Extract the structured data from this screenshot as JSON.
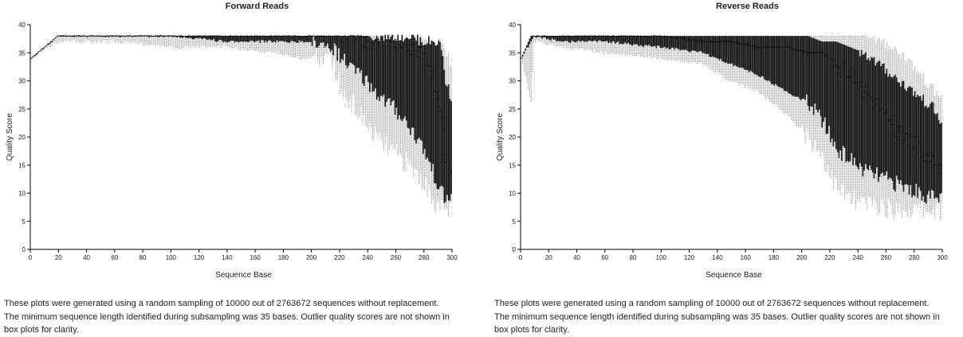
{
  "chart_data": [
    {
      "type": "box",
      "title": "Forward Reads",
      "xlabel": "Sequence Base",
      "ylabel": "Quality Score",
      "xlim": [
        0,
        300
      ],
      "ylim": [
        0,
        40
      ],
      "xticks": [
        0,
        20,
        40,
        60,
        80,
        100,
        120,
        140,
        160,
        180,
        200,
        220,
        240,
        260,
        280,
        300
      ],
      "yticks": [
        0,
        5,
        10,
        15,
        20,
        25,
        30,
        35,
        40
      ],
      "profile": {
        "base": [
          1,
          20,
          60,
          100,
          140,
          170,
          195,
          215,
          222,
          230,
          240,
          250,
          260,
          270,
          280,
          285,
          290,
          293,
          296,
          300
        ],
        "whisker_low": [
          34,
          37,
          37,
          36,
          36,
          35,
          34,
          34,
          28,
          26,
          22,
          19,
          17,
          15,
          12,
          10,
          8,
          7,
          7,
          7
        ],
        "q1": [
          34,
          38,
          38,
          38,
          37,
          37,
          37,
          36,
          34,
          32,
          30,
          27,
          25,
          22,
          18,
          15,
          12,
          10,
          9,
          9
        ],
        "median": [
          34,
          38,
          38,
          38,
          38,
          38,
          38,
          38,
          38,
          38,
          37,
          37,
          37,
          36,
          35,
          32,
          28,
          22,
          16,
          13
        ],
        "q3": [
          34,
          38,
          38,
          38,
          38,
          38,
          38,
          38,
          38,
          38,
          38,
          38,
          38,
          38,
          37,
          37,
          37,
          36,
          30,
          27
        ],
        "whisker_high": [
          34,
          38,
          38,
          38,
          38,
          38,
          38,
          38,
          38,
          38,
          38,
          38,
          38,
          38,
          38,
          37,
          37,
          37,
          35,
          33
        ]
      }
    },
    {
      "type": "box",
      "title": "Reverse Reads",
      "xlabel": "Sequence Base",
      "ylabel": "Quality Score",
      "xlim": [
        0,
        300
      ],
      "ylim": [
        0,
        40
      ],
      "xticks": [
        0,
        20,
        40,
        60,
        80,
        100,
        120,
        140,
        160,
        180,
        200,
        220,
        240,
        260,
        280,
        300
      ],
      "yticks": [
        0,
        5,
        10,
        15,
        20,
        25,
        30,
        35,
        40
      ],
      "profile": {
        "base": [
          1,
          8,
          10,
          30,
          60,
          100,
          130,
          150,
          170,
          190,
          205,
          215,
          225,
          235,
          245,
          255,
          265,
          275,
          285,
          295,
          300
        ],
        "whisker_low": [
          34,
          26,
          37,
          36,
          35,
          34,
          33,
          30,
          28,
          24,
          20,
          17,
          11,
          9,
          8,
          8,
          7,
          7,
          7,
          7,
          7
        ],
        "q1": [
          34,
          37,
          38,
          37,
          37,
          36,
          35,
          33,
          31,
          28,
          26,
          23,
          18,
          16,
          14,
          13,
          12,
          11,
          10,
          9,
          9
        ],
        "median": [
          34,
          38,
          38,
          38,
          38,
          38,
          37,
          37,
          36,
          36,
          35,
          35,
          33,
          31,
          28,
          25,
          22,
          20,
          18,
          15,
          14
        ],
        "q3": [
          34,
          38,
          38,
          38,
          38,
          38,
          38,
          38,
          38,
          38,
          38,
          37,
          37,
          36,
          35,
          33,
          31,
          29,
          27,
          25,
          22
        ],
        "whisker_high": [
          34,
          38,
          38,
          38,
          38,
          38,
          38,
          38,
          38,
          38,
          38,
          38,
          38,
          38,
          38,
          37,
          36,
          34,
          31,
          28,
          27
        ]
      }
    }
  ],
  "captions": [
    "These plots were generated using a random sampling of 10000 out of 2763672 sequences without replacement. The minimum sequence length identified during subsampling was 35 bases. Outlier quality scores are not shown in box plots for clarity.",
    "These plots were generated using a random sampling of 10000 out of 2763672 sequences without replacement. The minimum sequence length identified during subsampling was 35 bases. Outlier quality scores are not shown in box plots for clarity."
  ]
}
